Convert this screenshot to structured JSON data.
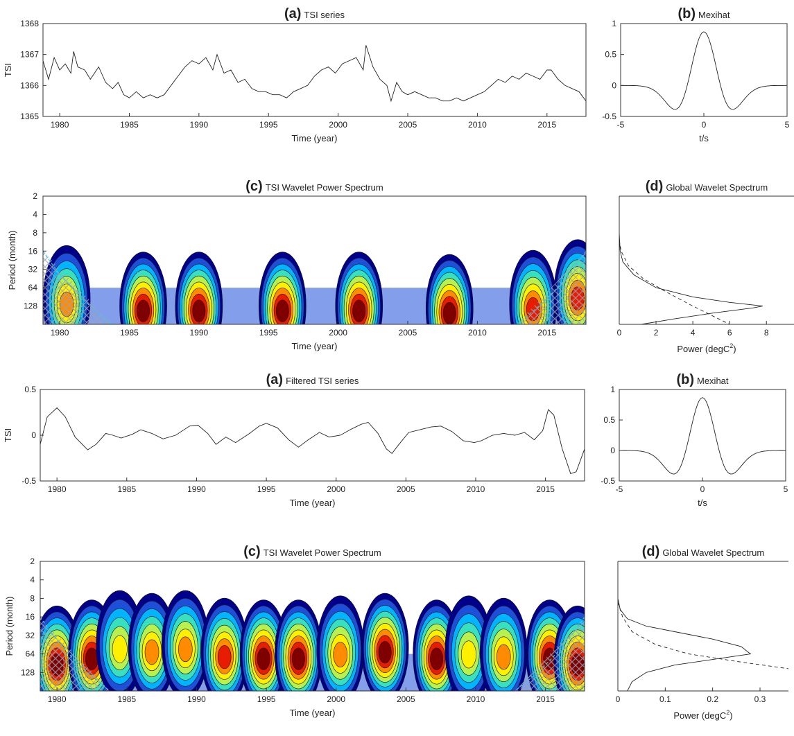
{
  "chart_data": [
    {
      "id": "a1",
      "type": "line",
      "title_letter": "(a)",
      "title": "TSI series",
      "xlabel": "Time (year)",
      "ylabel": "TSI",
      "xlim": [
        1978.8,
        2017.8
      ],
      "ylim": [
        1365,
        1368
      ],
      "xticks": [
        "1980",
        "1985",
        "1990",
        "1995",
        "2000",
        "2005",
        "2010",
        "2015"
      ],
      "yticks": [
        "1365",
        "1366",
        "1367",
        "1368"
      ],
      "series": [
        {
          "x": [
            1978.8,
            1979.2,
            1979.6,
            1980.0,
            1980.4,
            1980.8,
            1981.0,
            1981.3,
            1981.8,
            1982.2,
            1982.8,
            1983.3,
            1983.8,
            1984.2,
            1984.6,
            1985.0,
            1985.5,
            1986.0,
            1986.5,
            1987.0,
            1987.5,
            1988.0,
            1988.5,
            1989.0,
            1989.5,
            1990.0,
            1990.5,
            1991.0,
            1991.3,
            1991.8,
            1992.3,
            1992.8,
            1993.3,
            1993.8,
            1994.3,
            1994.8,
            1995.3,
            1995.8,
            1996.3,
            1996.8,
            1997.3,
            1997.8,
            1998.3,
            1998.8,
            1999.3,
            1999.8,
            2000.3,
            2000.8,
            2001.3,
            2001.8,
            2002.0,
            2002.5,
            2003.0,
            2003.5,
            2003.8,
            2004.2,
            2004.6,
            2005.0,
            2005.5,
            2006.0,
            2006.5,
            2007.0,
            2007.5,
            2008.0,
            2008.5,
            2009.0,
            2009.5,
            2010.0,
            2010.5,
            2011.0,
            2011.5,
            2012.0,
            2012.5,
            2013.0,
            2013.5,
            2014.0,
            2014.5,
            2015.0,
            2015.3,
            2015.8,
            2016.3,
            2016.8,
            2017.3,
            2017.8
          ],
          "y": [
            1366.8,
            1366.2,
            1366.9,
            1366.5,
            1366.7,
            1366.4,
            1367.1,
            1366.6,
            1366.5,
            1366.2,
            1366.6,
            1366.1,
            1365.9,
            1366.1,
            1365.7,
            1365.6,
            1365.8,
            1365.6,
            1365.7,
            1365.6,
            1365.7,
            1366.0,
            1366.3,
            1366.6,
            1366.8,
            1366.7,
            1366.9,
            1366.5,
            1367.0,
            1366.4,
            1366.5,
            1366.1,
            1366.2,
            1365.9,
            1365.8,
            1365.8,
            1365.7,
            1365.7,
            1365.6,
            1365.8,
            1365.9,
            1366.0,
            1366.3,
            1366.5,
            1366.6,
            1366.4,
            1366.7,
            1366.8,
            1366.9,
            1366.5,
            1367.3,
            1366.6,
            1366.2,
            1366.0,
            1365.5,
            1366.1,
            1365.8,
            1365.7,
            1365.8,
            1365.7,
            1365.6,
            1365.6,
            1365.5,
            1365.5,
            1365.6,
            1365.5,
            1365.6,
            1365.7,
            1365.8,
            1366.0,
            1366.2,
            1366.1,
            1366.3,
            1366.2,
            1366.4,
            1366.3,
            1366.2,
            1366.5,
            1366.5,
            1366.2,
            1366.0,
            1365.9,
            1365.8,
            1365.5
          ]
        }
      ]
    },
    {
      "id": "b1",
      "type": "line",
      "title_letter": "(b)",
      "title": "Mexihat",
      "xlabel": "t/s",
      "ylabel": "",
      "xlim": [
        -5,
        5
      ],
      "ylim": [
        -0.5,
        1
      ],
      "xticks": [
        "-5",
        "0",
        "5"
      ],
      "yticks": [
        "-0.5",
        "0",
        "0.5",
        "1"
      ],
      "series": [
        {
          "function": "mexican-hat",
          "amplitude": 0.867,
          "range": [
            -5,
            5
          ]
        }
      ]
    },
    {
      "id": "c1",
      "type": "heatmap",
      "title_letter": "(c)",
      "title": "TSI Wavelet Power Spectrum",
      "xlabel": "Time (year)",
      "ylabel": "Period (month)",
      "xlim": [
        1978.8,
        2017.8
      ],
      "xticks": [
        "1980",
        "1985",
        "1990",
        "1995",
        "2000",
        "2005",
        "2010",
        "2015"
      ],
      "yticks": [
        "2",
        "4",
        "8",
        "16",
        "32",
        "64",
        "128"
      ],
      "log2_period_range": [
        1,
        8
      ],
      "colormap": [
        "#ffffff",
        "#00008b",
        "#1d4fd8",
        "#00b4ff",
        "#38e0c0",
        "#b8f050",
        "#fff000",
        "#ff8c00",
        "#e81c00",
        "#7f0000"
      ],
      "peaks": [
        {
          "year": 1980.5,
          "period": 100,
          "power": 0.75
        },
        {
          "year": 1986.0,
          "period": 128,
          "power": 1.0
        },
        {
          "year": 1990.0,
          "period": 128,
          "power": 1.0
        },
        {
          "year": 1996.0,
          "period": 128,
          "power": 1.0
        },
        {
          "year": 2001.5,
          "period": 128,
          "power": 1.0
        },
        {
          "year": 2008.0,
          "period": 140,
          "power": 1.0
        },
        {
          "year": 2014.0,
          "period": 120,
          "power": 0.85
        },
        {
          "year": 2017.2,
          "period": 80,
          "power": 0.85
        }
      ]
    },
    {
      "id": "d1",
      "type": "line",
      "title_letter": "(d)",
      "title": "Global Wavelet Spectrum",
      "xlabel": "Power (degC2)",
      "ylabel": "",
      "xlim": [
        0,
        9.5
      ],
      "ylim_log2_period": [
        1,
        8
      ],
      "xticks": [
        "0",
        "2",
        "4",
        "6",
        "8"
      ],
      "series": [
        {
          "style": "solid",
          "x": [
            0,
            0.05,
            0.2,
            0.8,
            2,
            4,
            6,
            7.8,
            7.3,
            5,
            3,
            1.2
          ],
          "y": [
            3.0,
            4.0,
            4.6,
            5.3,
            6.0,
            6.5,
            6.8,
            7.0,
            7.1,
            7.4,
            7.7,
            8.0
          ]
        },
        {
          "style": "dashed",
          "x": [
            0,
            0.1,
            0.5,
            1.3,
            2.5,
            3.8,
            5,
            6
          ],
          "y": [
            3.4,
            4.0,
            4.8,
            5.5,
            6.2,
            6.9,
            7.5,
            8.0
          ]
        }
      ]
    },
    {
      "id": "a2",
      "type": "line",
      "title_letter": "(a)",
      "title": "Filtered TSI series",
      "xlabel": "Time (year)",
      "ylabel": "TSI",
      "xlim": [
        1978.8,
        2017.8
      ],
      "ylim": [
        -0.5,
        0.5
      ],
      "xticks": [
        "1980",
        "1985",
        "1990",
        "1995",
        "2000",
        "2005",
        "2010",
        "2015"
      ],
      "yticks": [
        "-0.5",
        "0",
        "0.5"
      ],
      "series": [
        {
          "x": [
            1978.8,
            1979.3,
            1980.0,
            1980.6,
            1981.3,
            1982.2,
            1982.8,
            1983.5,
            1984.0,
            1984.6,
            1985.4,
            1986.0,
            1986.8,
            1987.6,
            1988.5,
            1989.5,
            1990.1,
            1990.8,
            1991.4,
            1992.1,
            1992.8,
            1993.7,
            1994.5,
            1995.0,
            1995.8,
            1996.6,
            1997.3,
            1998.0,
            1998.8,
            1999.5,
            2000.3,
            2001.0,
            2001.8,
            2002.3,
            2003.0,
            2003.6,
            2004.0,
            2004.5,
            2005.2,
            2006.0,
            2006.8,
            2007.5,
            2008.3,
            2009.1,
            2009.9,
            2010.4,
            2011.2,
            2012.0,
            2012.8,
            2013.5,
            2014.2,
            2014.8,
            2015.2,
            2015.6,
            2016.2,
            2016.8,
            2017.2,
            2017.8
          ],
          "y": [
            -0.1,
            0.2,
            0.3,
            0.2,
            -0.02,
            -0.16,
            -0.1,
            0.02,
            0.0,
            -0.03,
            0.01,
            0.06,
            0.02,
            -0.04,
            0.0,
            0.1,
            0.11,
            0.02,
            -0.1,
            -0.02,
            -0.08,
            0.01,
            0.1,
            0.13,
            0.08,
            -0.05,
            -0.13,
            -0.05,
            0.03,
            -0.02,
            0.0,
            0.06,
            0.12,
            0.14,
            0.02,
            -0.15,
            -0.2,
            -0.1,
            0.03,
            0.06,
            0.09,
            0.1,
            0.04,
            -0.06,
            -0.08,
            -0.06,
            0.0,
            0.02,
            0.0,
            0.03,
            -0.05,
            0.05,
            0.28,
            0.22,
            -0.15,
            -0.42,
            -0.4,
            -0.15
          ]
        }
      ]
    },
    {
      "id": "b2",
      "type": "line",
      "title_letter": "(b)",
      "title": "Mexihat",
      "xlabel": "t/s",
      "ylabel": "",
      "xlim": [
        -5,
        5
      ],
      "ylim": [
        -0.5,
        1
      ],
      "xticks": [
        "-5",
        "0",
        "5"
      ],
      "yticks": [
        "-0.5",
        "0",
        "0.5",
        "1"
      ],
      "series": [
        {
          "function": "mexican-hat",
          "amplitude": 0.867,
          "range": [
            -5,
            5
          ]
        }
      ]
    },
    {
      "id": "c2",
      "type": "heatmap",
      "title_letter": "(c)",
      "title": "TSI Wavelet Power Spectrum",
      "xlabel": "Time (year)",
      "ylabel": "Period (month)",
      "xlim": [
        1978.8,
        2017.8
      ],
      "xticks": [
        "1980",
        "1985",
        "1990",
        "1995",
        "2000",
        "2005",
        "2010",
        "2015"
      ],
      "yticks": [
        "2",
        "4",
        "8",
        "16",
        "32",
        "64",
        "128"
      ],
      "log2_period_range": [
        1,
        8
      ],
      "colormap": [
        "#ffffff",
        "#00008b",
        "#1d4fd8",
        "#00b4ff",
        "#38e0c0",
        "#b8f050",
        "#fff000",
        "#ff8c00",
        "#e81c00",
        "#7f0000"
      ],
      "peaks": [
        {
          "year": 1980.0,
          "period": 80,
          "power": 1.0
        },
        {
          "year": 1982.5,
          "period": 64,
          "power": 1.0
        },
        {
          "year": 1984.5,
          "period": 45,
          "power": 0.7
        },
        {
          "year": 1986.8,
          "period": 50,
          "power": 0.8
        },
        {
          "year": 1989.2,
          "period": 45,
          "power": 0.75
        },
        {
          "year": 1992.0,
          "period": 60,
          "power": 0.9
        },
        {
          "year": 1994.8,
          "period": 64,
          "power": 1.0
        },
        {
          "year": 1997.3,
          "period": 64,
          "power": 1.0
        },
        {
          "year": 2000.3,
          "period": 55,
          "power": 0.75
        },
        {
          "year": 2003.5,
          "period": 50,
          "power": 1.0
        },
        {
          "year": 2007.2,
          "period": 64,
          "power": 1.0
        },
        {
          "year": 2009.5,
          "period": 55,
          "power": 0.7
        },
        {
          "year": 2012.0,
          "period": 60,
          "power": 0.75
        },
        {
          "year": 2015.3,
          "period": 64,
          "power": 1.0
        },
        {
          "year": 2017.3,
          "period": 80,
          "power": 1.0
        }
      ]
    },
    {
      "id": "d2",
      "type": "line",
      "title_letter": "(d)",
      "title": "Global Wavelet Spectrum",
      "xlabel": "Power (degC2)",
      "ylabel": "",
      "xlim": [
        0,
        0.36
      ],
      "ylim_log2_period": [
        1,
        8
      ],
      "xticks": [
        "0",
        "0.1",
        "0.2",
        "0.3"
      ],
      "series": [
        {
          "style": "solid",
          "x": [
            0,
            0.005,
            0.02,
            0.06,
            0.12,
            0.2,
            0.26,
            0.28,
            0.2,
            0.12,
            0.06,
            0.03,
            0.02
          ],
          "y": [
            3.0,
            3.6,
            4.1,
            4.5,
            4.8,
            5.2,
            5.6,
            6.0,
            6.3,
            6.6,
            7.0,
            7.5,
            8.0
          ]
        },
        {
          "style": "dashed",
          "x": [
            0,
            0.01,
            0.03,
            0.08,
            0.15,
            0.25,
            0.36
          ],
          "y": [
            3.2,
            4.0,
            4.8,
            5.5,
            6.0,
            6.4,
            6.8
          ]
        }
      ]
    }
  ]
}
